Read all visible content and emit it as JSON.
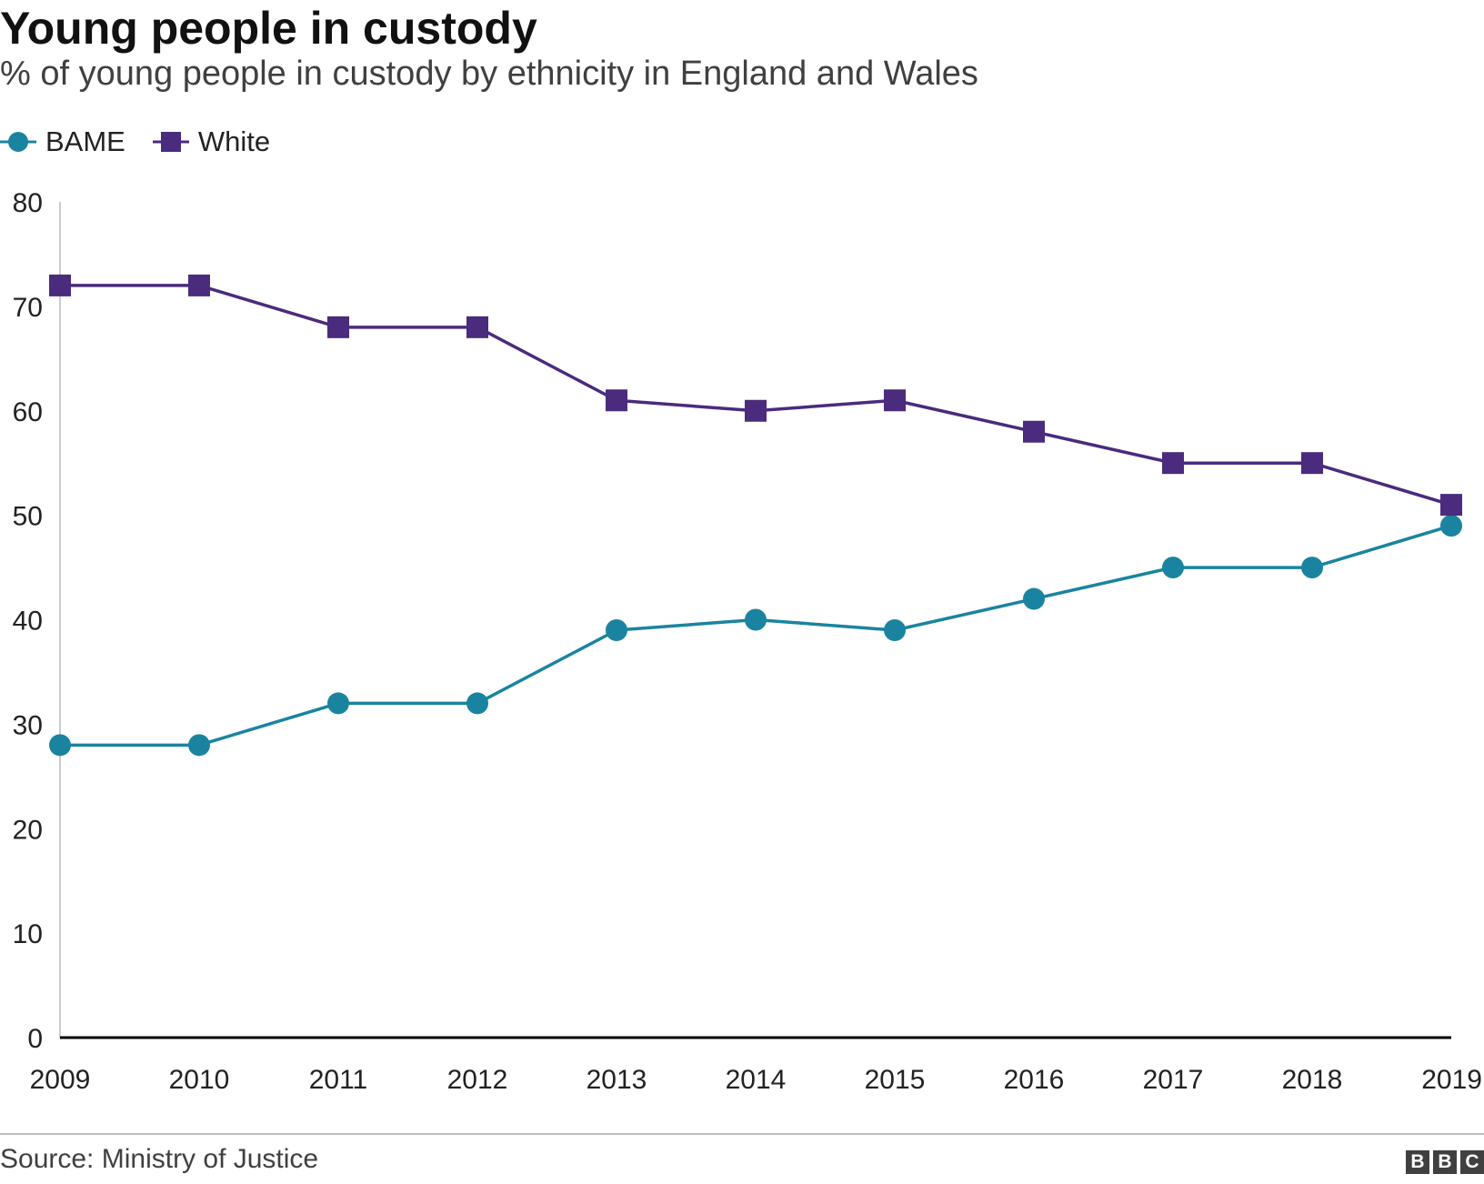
{
  "header": {
    "title": "Young people in custody",
    "subtitle": "% of young people in custody by ethnicity in England and Wales"
  },
  "legend": {
    "items": [
      {
        "label": "BAME",
        "color": "#1a84a0",
        "marker": "circle"
      },
      {
        "label": "White",
        "color": "#4a2b7d",
        "marker": "square"
      }
    ]
  },
  "footer": {
    "source": "Source: Ministry of Justice",
    "logo_letters": [
      "B",
      "B",
      "C"
    ]
  },
  "chart_data": {
    "type": "line",
    "title": "Young people in custody",
    "subtitle": "% of young people in custody by ethnicity in England and Wales",
    "xlabel": "",
    "ylabel": "",
    "x": [
      "2009",
      "2010",
      "2011",
      "2012",
      "2013",
      "2014",
      "2015",
      "2016",
      "2017",
      "2018",
      "2019"
    ],
    "ylim": [
      0,
      80
    ],
    "yticks": [
      0,
      10,
      20,
      30,
      40,
      50,
      60,
      70,
      80
    ],
    "grid": false,
    "legend_position": "top-left",
    "series": [
      {
        "name": "BAME",
        "color": "#1a84a0",
        "marker": "circle",
        "values": [
          28,
          28,
          32,
          32,
          39,
          40,
          39,
          42,
          45,
          45,
          49
        ]
      },
      {
        "name": "White",
        "color": "#4a2b7d",
        "marker": "square",
        "values": [
          72,
          72,
          68,
          68,
          61,
          60,
          61,
          58,
          55,
          55,
          51
        ]
      }
    ]
  }
}
